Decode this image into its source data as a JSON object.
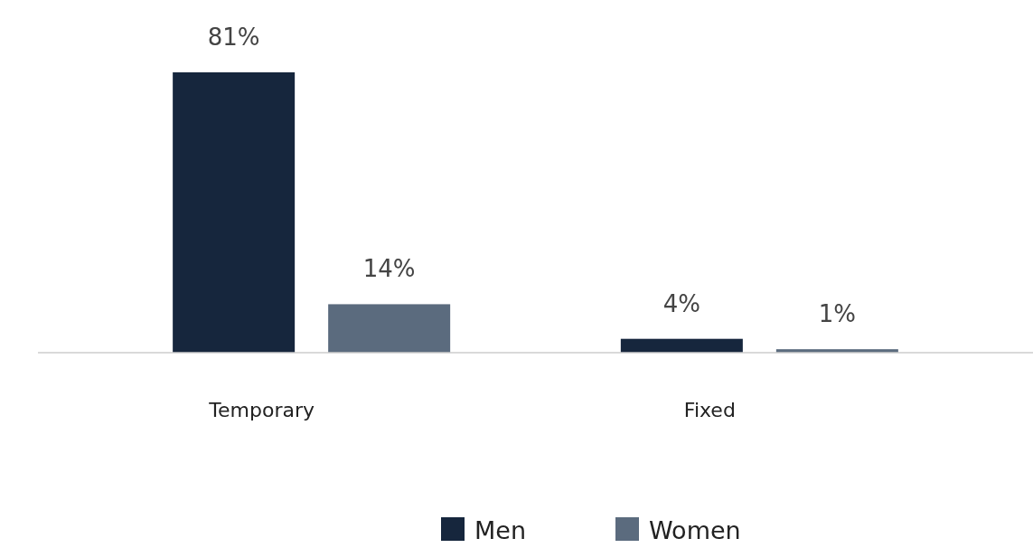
{
  "chart_data": {
    "type": "bar",
    "categories": [
      "Temporary",
      "Fixed"
    ],
    "series": [
      {
        "name": "Men",
        "color": "#16263d",
        "values": [
          81,
          4
        ],
        "value_labels": [
          "81%",
          "4%"
        ]
      },
      {
        "name": "Women",
        "color": "#5b6b7e",
        "values": [
          14,
          1
        ],
        "value_labels": [
          "14%",
          "1%"
        ]
      }
    ],
    "legend": "bottom"
  }
}
